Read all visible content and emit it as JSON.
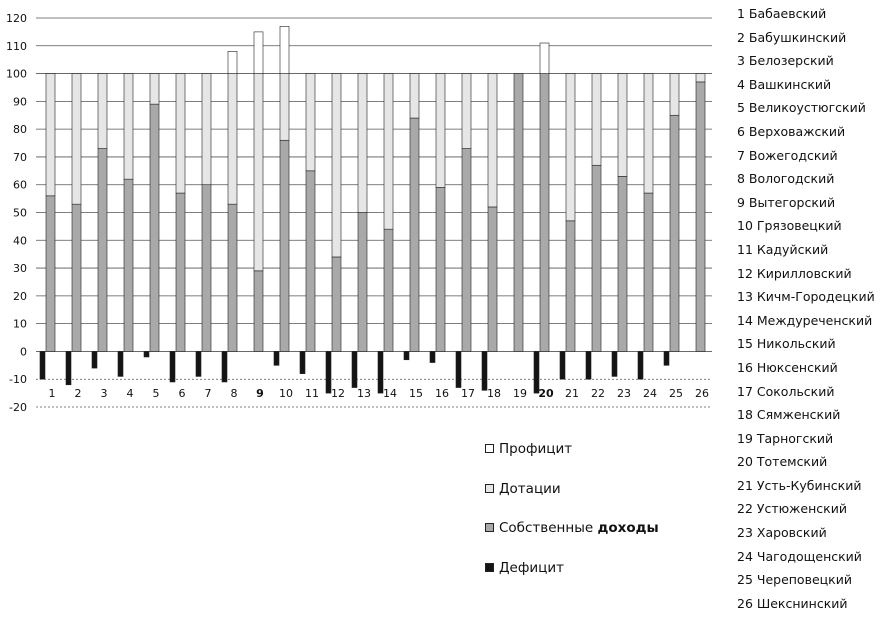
{
  "chart_data": {
    "type": "bar",
    "categories": [
      "1",
      "2",
      "3",
      "4",
      "5",
      "6",
      "7",
      "8",
      "9",
      "10",
      "11",
      "12",
      "13",
      "14",
      "15",
      "16",
      "17",
      "18",
      "19",
      "20",
      "21",
      "22",
      "23",
      "24",
      "25",
      "26"
    ],
    "y_ticks": [
      "120",
      "110",
      "100",
      "90",
      "80",
      "70",
      "60",
      "50",
      "40",
      "30",
      "20",
      "10",
      "0",
      "-10",
      "-20"
    ],
    "ylim": [
      -20,
      120
    ],
    "grid": true,
    "legend_position": "bottom-right",
    "series": [
      {
        "name": "Профицит",
        "color": "#ffffff",
        "values": [
          0,
          0,
          0,
          0,
          0,
          0,
          0,
          8,
          15,
          17,
          0,
          0,
          0,
          0,
          0,
          0,
          0,
          0,
          0,
          11,
          0,
          0,
          0,
          0,
          0,
          0
        ]
      },
      {
        "name": "Дотации",
        "color": "#e6e6e6",
        "values": [
          44,
          47,
          27,
          38,
          11,
          43,
          40,
          47,
          71,
          24,
          35,
          66,
          50,
          56,
          16,
          41,
          27,
          48,
          0,
          0,
          53,
          33,
          37,
          43,
          15,
          3
        ]
      },
      {
        "name": "Собственные доходы",
        "color": "#a9a9a9",
        "values": [
          56,
          53,
          73,
          62,
          89,
          57,
          60,
          53,
          29,
          76,
          65,
          34,
          50,
          44,
          84,
          59,
          73,
          52,
          100,
          100,
          47,
          67,
          63,
          57,
          85,
          97
        ]
      },
      {
        "name": "Дефицит",
        "color": "#141414",
        "values": [
          -10,
          -12,
          -6,
          -9,
          -2,
          -11,
          -9,
          -11,
          0,
          -5,
          -8,
          -15,
          -13,
          -15,
          -3,
          -4,
          -13,
          -14,
          0,
          -15,
          -10,
          -10,
          -9,
          -10,
          -5,
          0
        ]
      }
    ],
    "legend": {
      "items": [
        {
          "text": "Профицит",
          "swatch": "#ffffff"
        },
        {
          "text": "Дотации",
          "swatch": "#e6e6e6"
        },
        {
          "text_plain": "Собственные ",
          "text_bold": "доходы",
          "swatch": "#a9a9a9"
        },
        {
          "text": "Дефицит",
          "swatch": "#141414"
        }
      ]
    },
    "districts": [
      "1 Бабаевский",
      "2 Бабушкинский",
      "3 Белозерский",
      "4 Вашкинский",
      "5 Великоустюгский",
      "6 Верховажский",
      "7 Вожегодский",
      "8 Вологодский",
      "9 Вытегорский",
      "10 Грязовецкий",
      "11 Кадуйский",
      "12 Кирилловский",
      "13 Кичм-Городецкий",
      "14 Междуреченский",
      "15 Никольский",
      "16 Нюксенский",
      "17 Сокольский",
      "18 Сямженский",
      "19 Тарногский",
      "20 Тотемский",
      "21 Усть-Кубинский",
      "22 Устюженский",
      "23 Харовский",
      "24 Чагодощенский",
      "25 Череповецкий",
      "26 Шекснинский"
    ]
  }
}
